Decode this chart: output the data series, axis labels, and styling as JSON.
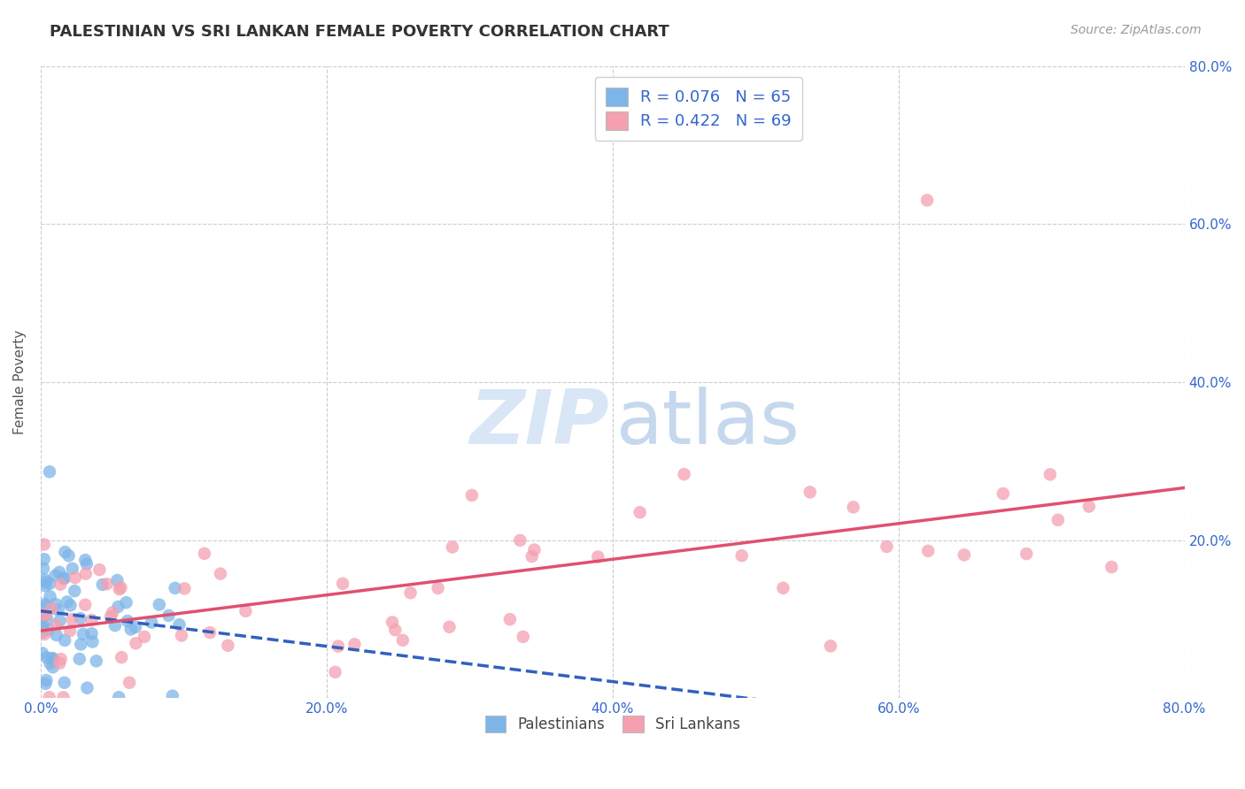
{
  "title": "PALESTINIAN VS SRI LANKAN FEMALE POVERTY CORRELATION CHART",
  "source": "Source: ZipAtlas.com",
  "ylabel": "Female Poverty",
  "xlim": [
    0.0,
    0.8
  ],
  "ylim": [
    0.0,
    0.8
  ],
  "blue_color": "#7EB5E8",
  "pink_color": "#F4A0B0",
  "blue_line_color": "#3060C0",
  "pink_line_color": "#E05070",
  "label_color": "#3366CC",
  "grid_color": "#CCCCCC",
  "R_blue": 0.076,
  "N_blue": 65,
  "R_pink": 0.422,
  "N_pink": 69
}
